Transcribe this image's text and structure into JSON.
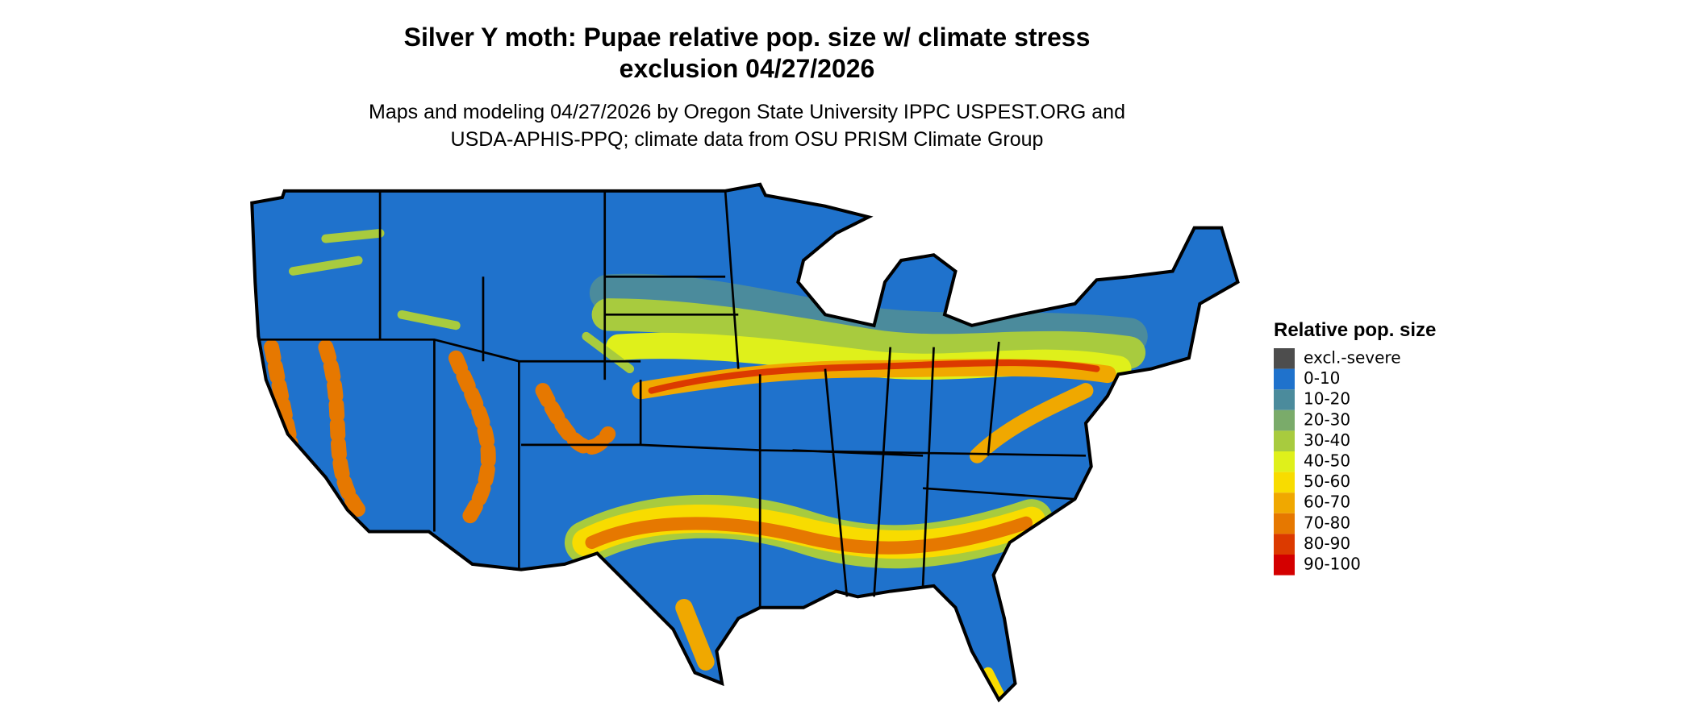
{
  "header": {
    "title_lines": [
      "Silver Y moth: Pupae relative pop. size w/ climate stress",
      "exclusion 04/27/2026"
    ],
    "subtitle_lines": [
      "Maps and modeling 04/27/2026 by Oregon State University IPPC USPEST.ORG and",
      "USDA-APHIS-PPQ; climate data from OSU PRISM Climate Group"
    ]
  },
  "legend": {
    "title": "Relative pop. size",
    "items": [
      {
        "label": "excl.-severe",
        "color": "#4d4d4d"
      },
      {
        "label": "0-10",
        "color": "#1f72cc"
      },
      {
        "label": "10-20",
        "color": "#4b8b9c"
      },
      {
        "label": "20-30",
        "color": "#7aab6a"
      },
      {
        "label": "30-40",
        "color": "#a8cb3e"
      },
      {
        "label": "40-50",
        "color": "#dff01b"
      },
      {
        "label": "50-60",
        "color": "#f8dc00"
      },
      {
        "label": "60-70",
        "color": "#f0a800"
      },
      {
        "label": "70-80",
        "color": "#e67800"
      },
      {
        "label": "80-90",
        "color": "#dc3a00"
      },
      {
        "label": "90-100",
        "color": "#d40000"
      }
    ]
  }
}
